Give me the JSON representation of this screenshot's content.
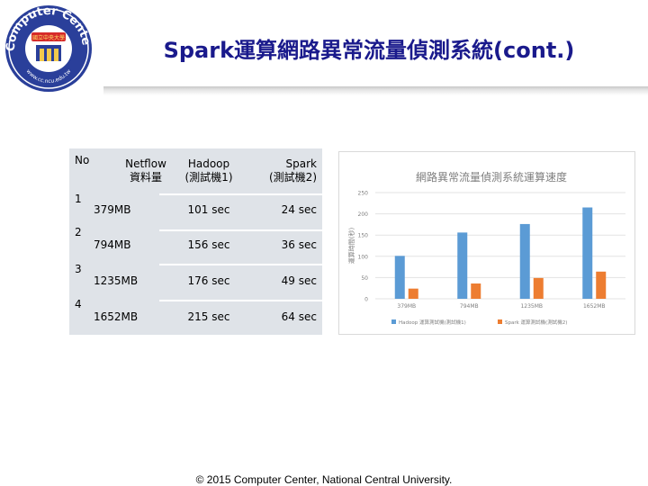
{
  "logo": {
    "arc_text": "Computer Center",
    "bottom_text": "www.cc.ncu.edu.tw",
    "badge_text": "國立中央大學"
  },
  "slide_title": "Spark運算網路異常流量偵測系統(cont.)",
  "table": {
    "headers": {
      "no": "No",
      "netflow_line1": "Netflow",
      "netflow_line2": "資料量",
      "hadoop_line1": "Hadoop",
      "hadoop_line2": "(測試機1)",
      "spark_line1": "Spark",
      "spark_line2": "(測試機2)"
    },
    "rows": [
      {
        "no": "1",
        "size": "379MB",
        "hadoop": "101 sec",
        "spark": "24 sec"
      },
      {
        "no": "2",
        "size": "794MB",
        "hadoop": "156 sec",
        "spark": "36 sec"
      },
      {
        "no": "3",
        "size": "1235MB",
        "hadoop": "176 sec",
        "spark": "49 sec"
      },
      {
        "no": "4",
        "size": "1652MB",
        "hadoop": "215 sec",
        "spark": "64 sec"
      }
    ]
  },
  "chart_data": {
    "type": "bar",
    "title": "網路異常流量偵測系統運算速度",
    "xlabel": "",
    "ylabel": "運算時間(秒)",
    "categories": [
      "379MB",
      "794MB",
      "1235MB",
      "1652MB"
    ],
    "ylim": [
      0,
      250
    ],
    "yticks": [
      0,
      50,
      100,
      150,
      200,
      250
    ],
    "grid": true,
    "legend_position": "bottom",
    "series": [
      {
        "name": "Hadoop 運算測試機(測試機1)",
        "values": [
          101,
          156,
          176,
          215
        ],
        "color": "#5b9bd5"
      },
      {
        "name": "Spark 運算測試機(測試機2)",
        "values": [
          24,
          36,
          49,
          64
        ],
        "color": "#ed7d31"
      }
    ]
  },
  "footer": "© 2015 Computer Center, National Central University."
}
